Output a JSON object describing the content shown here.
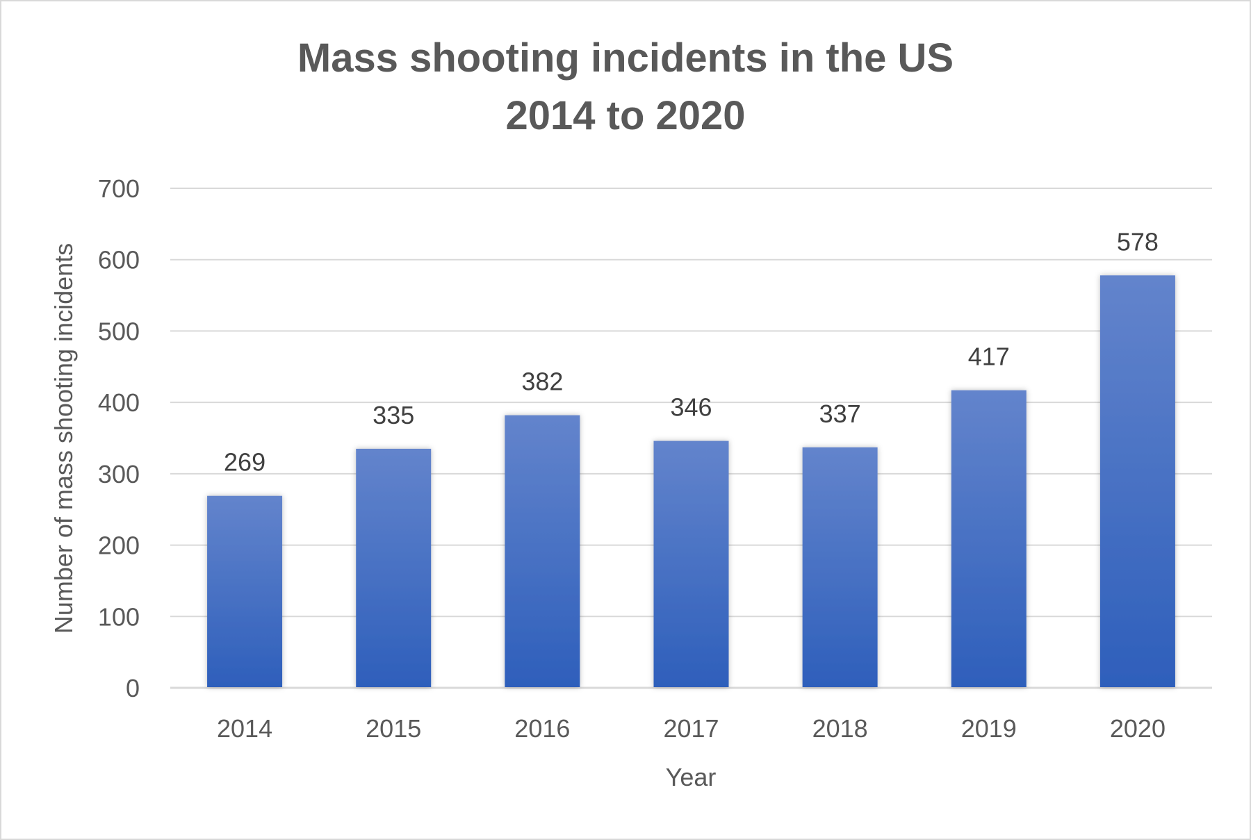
{
  "chart_data": {
    "type": "bar",
    "title": [
      "Mass shooting incidents in the US",
      "2014 to 2020"
    ],
    "xlabel": "Year",
    "ylabel": "Number of mass shooting incidents",
    "categories": [
      "2014",
      "2015",
      "2016",
      "2017",
      "2018",
      "2019",
      "2020"
    ],
    "values": [
      269,
      335,
      382,
      346,
      337,
      417,
      578
    ],
    "ylim": [
      0,
      700
    ],
    "yticks": [
      0,
      100,
      200,
      300,
      400,
      500,
      600,
      700
    ],
    "grid": true,
    "data_labels": true,
    "colors": {
      "bar_top": "#6384cc",
      "bar_bottom": "#2e5fbb",
      "text": "#595959",
      "title": "#595959",
      "label": "#404040",
      "grid": "#d9d9d9"
    }
  }
}
